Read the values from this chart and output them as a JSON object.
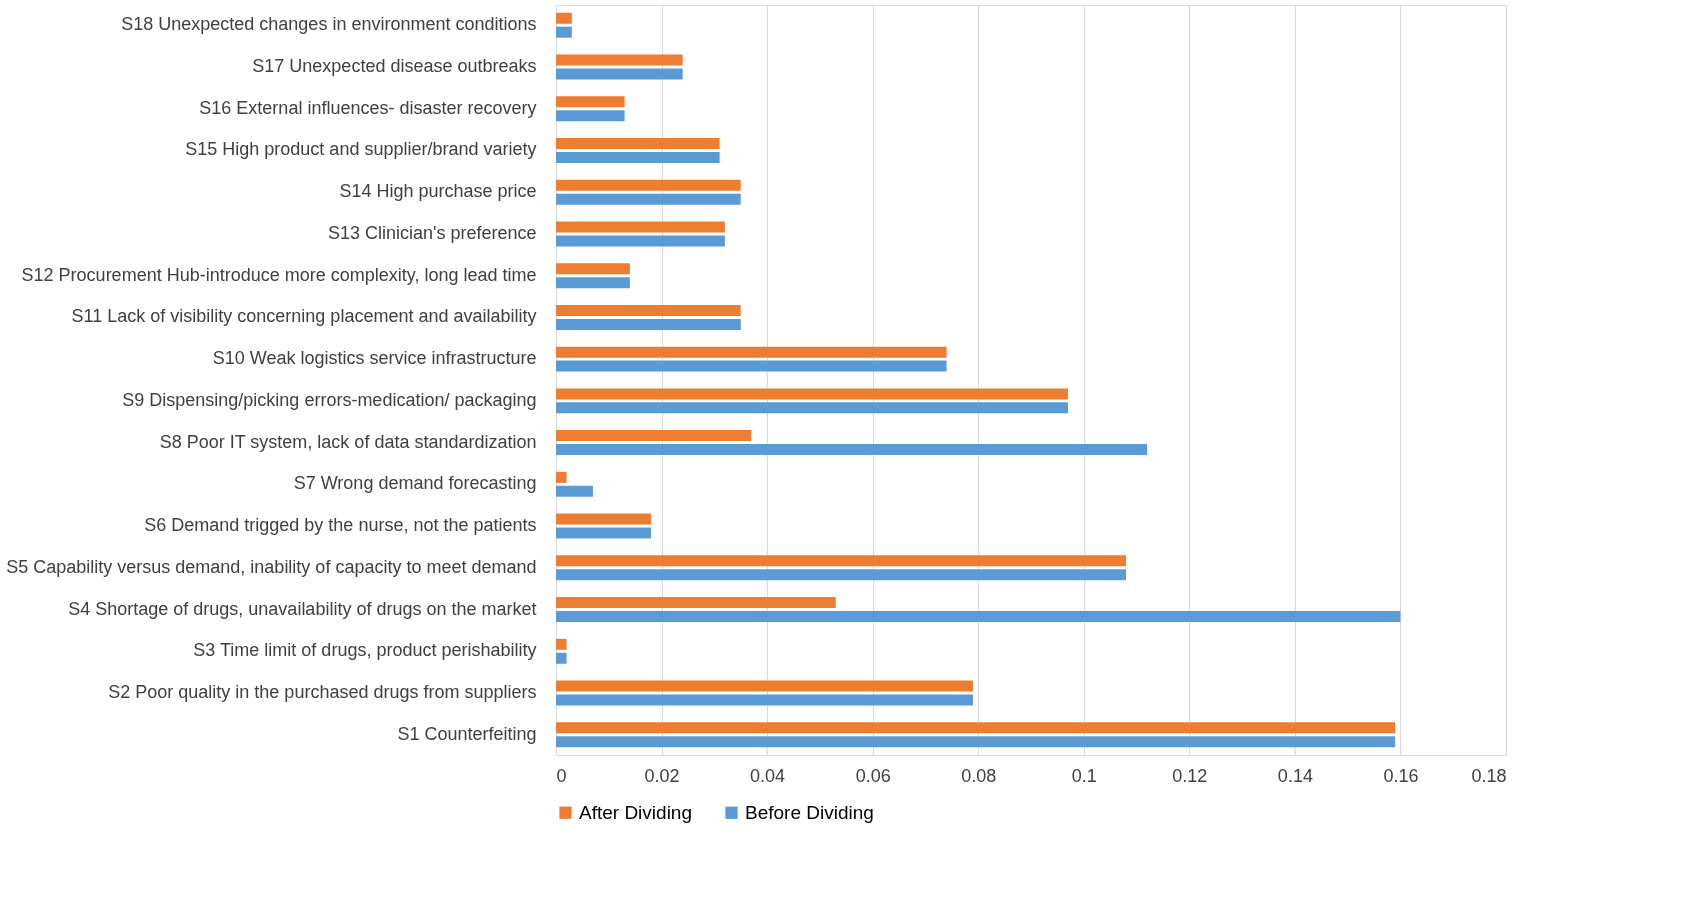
{
  "chart_data": {
    "type": "bar",
    "orientation": "horizontal",
    "categories": [
      "S18 Unexpected changes in environment conditions",
      "S17 Unexpected disease outbreaks",
      "S16 External influences- disaster recovery",
      "S15 High product and supplier/brand variety",
      "S14 High purchase price",
      "S13 Clinician's preference",
      "S12 Procurement Hub-introduce more complexity, long lead time",
      "S11 Lack of visibility concerning placement and availability",
      "S10 Weak logistics service infrastructure",
      "S9 Dispensing/picking errors-medication/ packaging",
      "S8 Poor IT system, lack of data standardization",
      "S7 Wrong demand forecasting",
      "S6 Demand trigged by the nurse, not the patients",
      "S5 Capability versus demand, inability of capacity to meet demand",
      "S4 Shortage of drugs, unavailability of drugs on the market",
      "S3 Time limit of drugs, product perishability",
      "S2 Poor quality in the purchased drugs from suppliers",
      "S1 Counterfeiting"
    ],
    "series": [
      {
        "name": "After Dividing",
        "color": "#ed7d31",
        "values": [
          0.003,
          0.024,
          0.013,
          0.031,
          0.035,
          0.032,
          0.014,
          0.035,
          0.074,
          0.097,
          0.037,
          0.002,
          0.018,
          0.108,
          0.053,
          0.002,
          0.079,
          0.159
        ]
      },
      {
        "name": "Before Dividing",
        "color": "#5b9bd5",
        "values": [
          0.003,
          0.024,
          0.013,
          0.031,
          0.035,
          0.032,
          0.014,
          0.035,
          0.074,
          0.097,
          0.112,
          0.007,
          0.018,
          0.108,
          0.16,
          0.002,
          0.079,
          0.159
        ]
      }
    ],
    "xlim": [
      0,
      0.18
    ],
    "xticks": [
      0,
      0.02,
      0.04,
      0.06,
      0.08,
      0.1,
      0.12,
      0.14,
      0.16,
      0.18
    ],
    "grid": "x",
    "legend": "bottom"
  }
}
